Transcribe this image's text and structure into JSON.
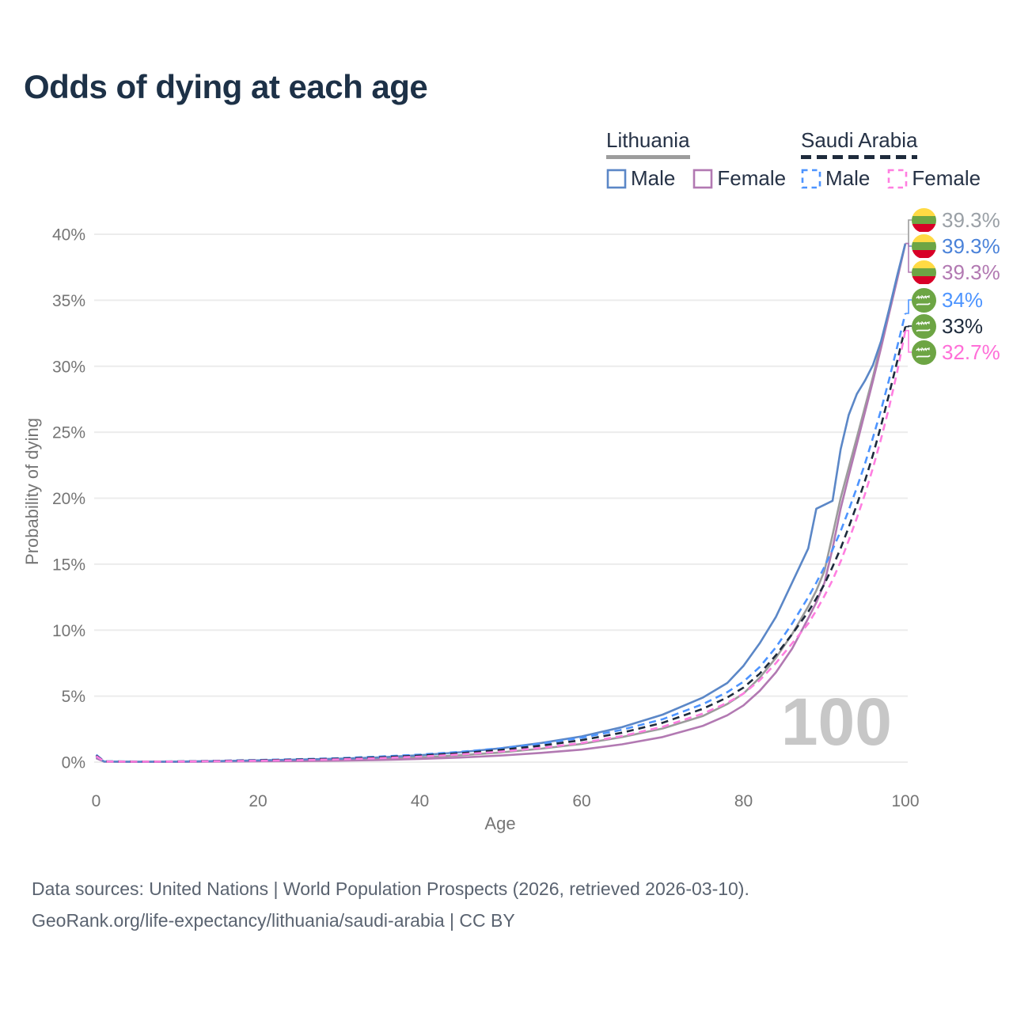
{
  "title": "Odds of dying at each age",
  "legend": {
    "groups": [
      {
        "country": "Lithuania",
        "line_style": "solid",
        "underline_color": "#9c9c9c",
        "items": [
          {
            "label": "Male",
            "color": "#5b87c7",
            "dash": false
          },
          {
            "label": "Female",
            "color": "#b279b2",
            "dash": false
          }
        ]
      },
      {
        "country": "Saudi Arabia",
        "line_style": "dashed",
        "underline_color": "#1e2b3c",
        "items": [
          {
            "label": "Male",
            "color": "#4d94ff",
            "dash": true
          },
          {
            "label": "Female",
            "color": "#ff7ee0",
            "dash": true
          }
        ]
      }
    ]
  },
  "watermark": "100",
  "footer": {
    "line1": "Data sources: United Nations | World Population Prospects (2026, retrieved 2026-03-10).",
    "line2": "GeoRank.org/life-expectancy/lithuania/saudi-arabia | CC BY"
  },
  "chart_data": {
    "type": "line",
    "title": "Odds of dying at each age",
    "xlabel": "Age",
    "ylabel": "Probability of dying",
    "xlim": [
      0,
      100
    ],
    "ylim_percent": [
      0,
      40
    ],
    "grid": "horizontal",
    "legend_position": "top-right",
    "xticks": [
      "0",
      "20",
      "40",
      "60",
      "80",
      "100"
    ],
    "xtick_values": [
      0,
      20,
      40,
      60,
      80,
      100
    ],
    "yticks": [
      "0%",
      "5%",
      "10%",
      "15%",
      "20%",
      "25%",
      "30%",
      "35%",
      "40%"
    ],
    "ytick_values": [
      0,
      5,
      10,
      15,
      20,
      25,
      30,
      35,
      40
    ],
    "x": [
      0,
      1,
      5,
      10,
      15,
      20,
      25,
      30,
      35,
      40,
      45,
      50,
      55,
      60,
      65,
      70,
      75,
      78,
      80,
      82,
      84,
      86,
      88,
      89,
      90,
      91,
      92,
      93,
      94,
      95,
      96,
      97,
      98,
      99,
      100
    ],
    "series": [
      {
        "id": "lithuania-total",
        "country": "Lithuania",
        "group": "Total",
        "color": "#9c9c9c",
        "label_color": "#9aa0a6",
        "dash": false,
        "flag": "lithuania",
        "end_label": "39.3%",
        "values": [
          0.35,
          0.04,
          0.02,
          0.03,
          0.06,
          0.09,
          0.13,
          0.18,
          0.25,
          0.36,
          0.52,
          0.73,
          1.02,
          1.38,
          1.9,
          2.55,
          3.5,
          4.4,
          5.2,
          6.4,
          7.9,
          9.7,
          11.8,
          13.0,
          14.5,
          17.2,
          20.0,
          22.3,
          24.6,
          26.9,
          29.2,
          31.7,
          34.3,
          36.8,
          39.3
        ]
      },
      {
        "id": "lithuania-male",
        "country": "Lithuania",
        "group": "Male",
        "color": "#5b87c7",
        "label_color": "#4a82d9",
        "dash": false,
        "flag": "lithuania",
        "end_label": "39.3%",
        "values": [
          0.4,
          0.05,
          0.03,
          0.04,
          0.08,
          0.13,
          0.19,
          0.26,
          0.36,
          0.52,
          0.75,
          1.05,
          1.45,
          1.95,
          2.65,
          3.6,
          4.9,
          6.0,
          7.3,
          9.0,
          11.0,
          13.6,
          16.2,
          19.2,
          19.5,
          19.8,
          23.7,
          26.3,
          27.9,
          28.9,
          30.1,
          31.9,
          34.3,
          36.9,
          39.3
        ]
      },
      {
        "id": "lithuania-female",
        "country": "Lithuania",
        "group": "Female",
        "color": "#b279b2",
        "label_color": "#b279b2",
        "dash": false,
        "flag": "lithuania",
        "end_label": "39.3%",
        "values": [
          0.3,
          0.035,
          0.02,
          0.02,
          0.04,
          0.06,
          0.08,
          0.11,
          0.16,
          0.24,
          0.35,
          0.5,
          0.7,
          0.95,
          1.35,
          1.9,
          2.75,
          3.55,
          4.3,
          5.4,
          6.8,
          8.6,
          10.9,
          12.1,
          13.6,
          16.2,
          19.2,
          21.7,
          24.1,
          26.5,
          28.9,
          31.4,
          34.0,
          36.6,
          39.3
        ]
      },
      {
        "id": "saudi-arabia-male",
        "country": "Saudi Arabia",
        "group": "Male",
        "color": "#4d94ff",
        "label_color": "#4d94ff",
        "dash": true,
        "flag": "saudi-arabia",
        "end_label": "34%",
        "values": [
          0.55,
          0.06,
          0.04,
          0.05,
          0.1,
          0.16,
          0.22,
          0.3,
          0.42,
          0.57,
          0.78,
          1.05,
          1.4,
          1.85,
          2.45,
          3.25,
          4.4,
          5.3,
          6.1,
          7.2,
          8.7,
          10.5,
          12.5,
          13.6,
          14.8,
          16.1,
          17.5,
          19.1,
          20.8,
          22.6,
          24.6,
          26.7,
          29.0,
          31.5,
          34.0
        ]
      },
      {
        "id": "saudi-arabia-total",
        "country": "Saudi Arabia",
        "group": "Total",
        "color": "#1e2b3c",
        "label_color": "#1e2b3c",
        "dash": true,
        "flag": "saudi-arabia",
        "end_label": "33%",
        "values": [
          0.5,
          0.055,
          0.035,
          0.045,
          0.09,
          0.14,
          0.19,
          0.26,
          0.36,
          0.5,
          0.68,
          0.93,
          1.25,
          1.67,
          2.23,
          2.98,
          4.05,
          4.9,
          5.65,
          6.7,
          8.1,
          9.7,
          11.4,
          12.4,
          13.5,
          14.8,
          16.2,
          17.8,
          19.5,
          21.3,
          23.3,
          25.5,
          27.9,
          30.4,
          33.0
        ]
      },
      {
        "id": "saudi-arabia-female",
        "country": "Saudi Arabia",
        "group": "Female",
        "color": "#ff7ee0",
        "label_color": "#ff6fd8",
        "dash": true,
        "flag": "saudi-arabia",
        "end_label": "32.7%",
        "values": [
          0.45,
          0.05,
          0.03,
          0.04,
          0.07,
          0.11,
          0.15,
          0.21,
          0.3,
          0.42,
          0.58,
          0.8,
          1.08,
          1.45,
          1.98,
          2.68,
          3.68,
          4.5,
          5.2,
          6.2,
          7.5,
          9.0,
          10.5,
          11.5,
          12.6,
          13.8,
          15.2,
          16.8,
          18.5,
          20.3,
          22.3,
          24.5,
          26.9,
          29.6,
          32.7
        ]
      }
    ]
  }
}
